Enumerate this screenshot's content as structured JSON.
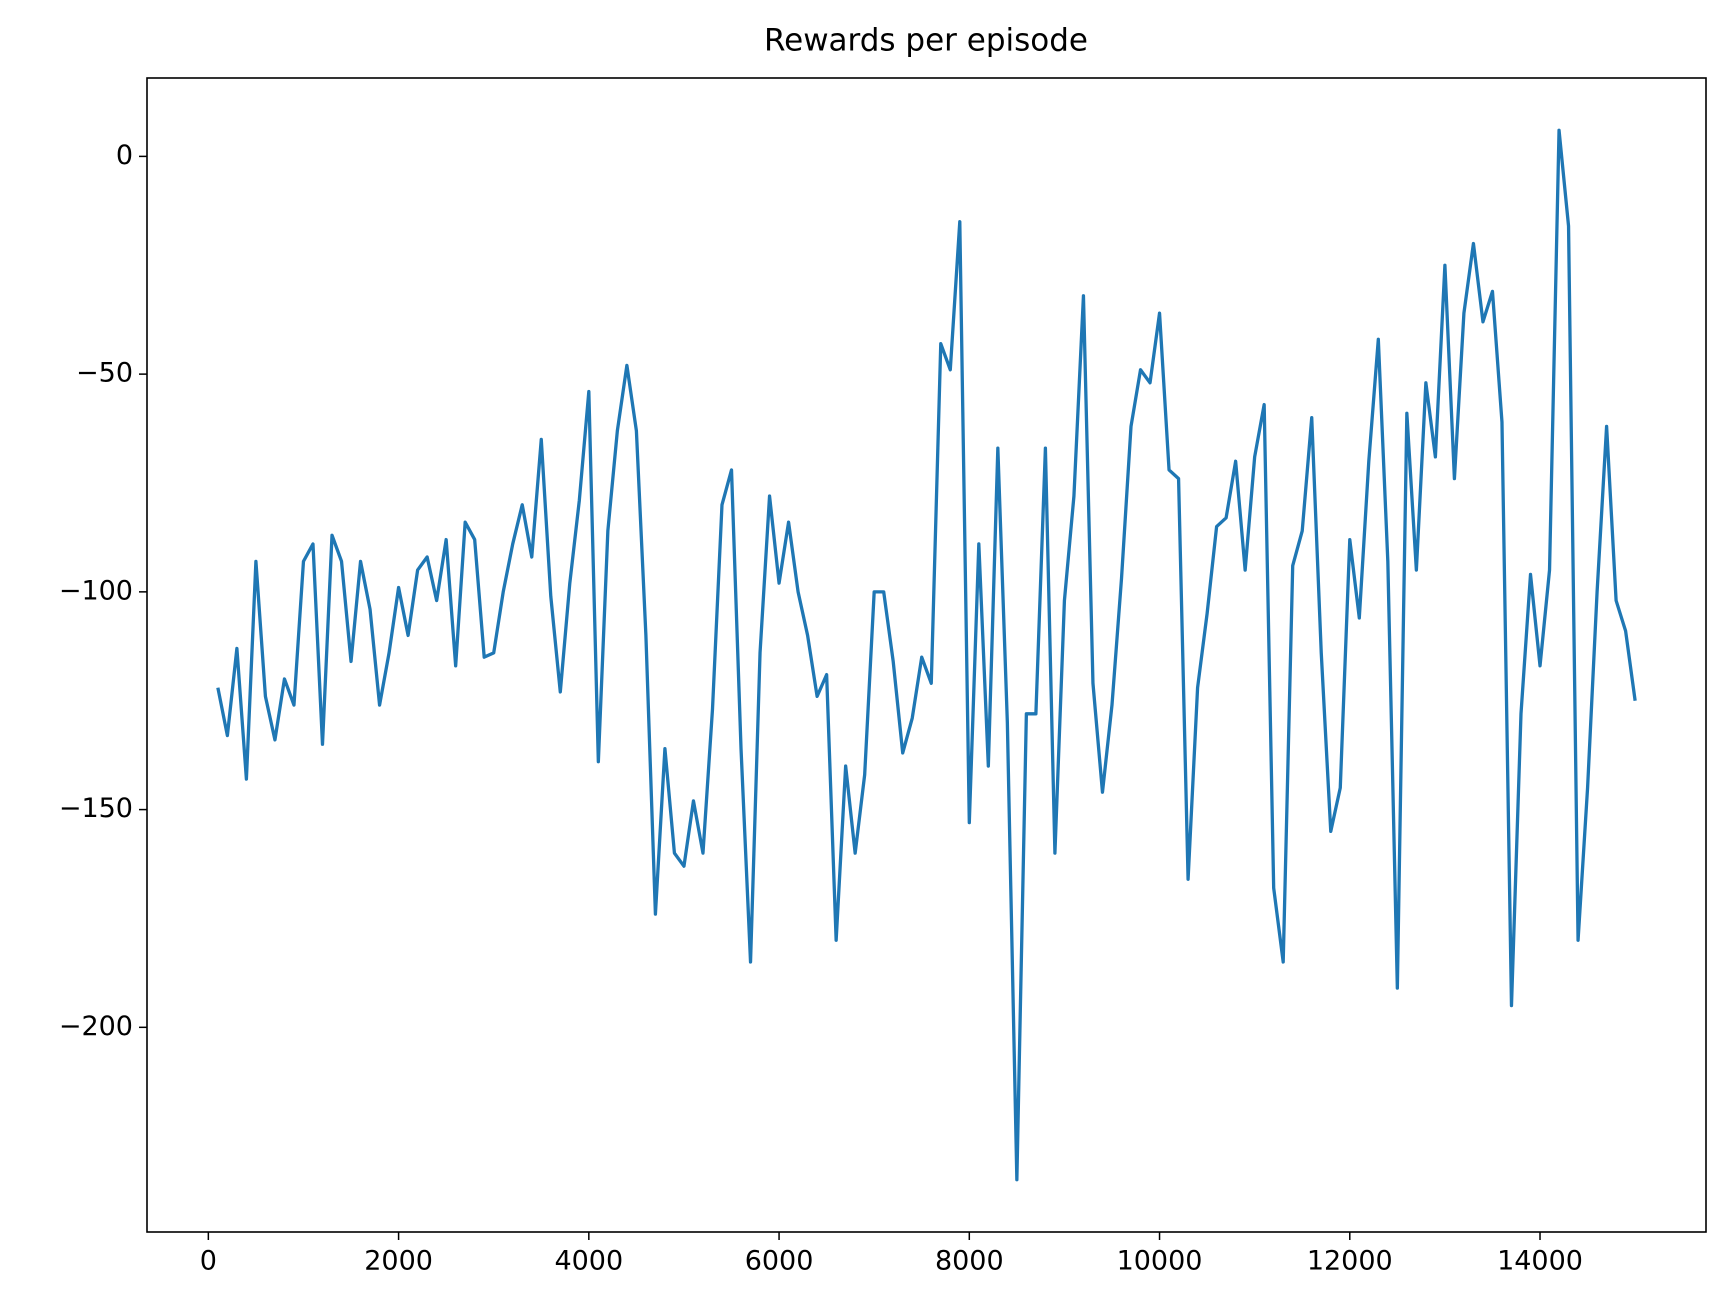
{
  "chart_data": {
    "type": "line",
    "title": "Rewards per episode",
    "x": [
      100,
      200,
      300,
      400,
      500,
      600,
      700,
      800,
      900,
      1000,
      1100,
      1200,
      1300,
      1400,
      1500,
      1600,
      1700,
      1800,
      1900,
      2000,
      2100,
      2200,
      2300,
      2400,
      2500,
      2600,
      2700,
      2800,
      2900,
      3000,
      3100,
      3200,
      3300,
      3400,
      3500,
      3600,
      3700,
      3800,
      3900,
      4000,
      4100,
      4200,
      4300,
      4400,
      4500,
      4600,
      4700,
      4800,
      4900,
      5000,
      5100,
      5200,
      5300,
      5400,
      5500,
      5600,
      5700,
      5800,
      5900,
      6000,
      6100,
      6200,
      6300,
      6400,
      6500,
      6600,
      6700,
      6800,
      6900,
      7000,
      7100,
      7200,
      7300,
      7400,
      7500,
      7600,
      7700,
      7800,
      7900,
      8000,
      8100,
      8200,
      8300,
      8400,
      8500,
      8600,
      8700,
      8800,
      8900,
      9000,
      9100,
      9200,
      9300,
      9400,
      9500,
      9600,
      9700,
      9800,
      9900,
      10000,
      10100,
      10200,
      10300,
      10400,
      10500,
      10600,
      10700,
      10800,
      10900,
      11000,
      11100,
      11200,
      11300,
      11400,
      11500,
      11600,
      11700,
      11800,
      11900,
      12000,
      12100,
      12200,
      12300,
      12400,
      12500,
      12600,
      12700,
      12800,
      12900,
      13000,
      13100,
      13200,
      13300,
      13400,
      13500,
      13600,
      13700,
      13800,
      13900,
      14000,
      14100,
      14200,
      14300,
      14400,
      14500,
      14600,
      14700,
      14800,
      14900,
      15000
    ],
    "series": [
      {
        "color": "#1f77b4",
        "values": [
          -122,
          -133,
          -113,
          -143,
          -93,
          -124,
          -134,
          -120,
          -126,
          -93,
          -89,
          -135,
          -87,
          -93,
          -116,
          -93,
          -104,
          -126,
          -114,
          -99,
          -110,
          -95,
          -92,
          -102,
          -88,
          -117,
          -84,
          -88,
          -115,
          -114,
          -100,
          -89,
          -80,
          -92,
          -65,
          -101,
          -123,
          -98,
          -79,
          -54,
          -139,
          -86,
          -63,
          -48,
          -63,
          -110,
          -174,
          -136,
          -160,
          -163,
          -148,
          -160,
          -127,
          -80,
          -72,
          -136,
          -185,
          -114,
          -78,
          -98,
          -84,
          -100,
          -110,
          -124,
          -119,
          -180,
          -140,
          -160,
          -142,
          -100,
          -100,
          -116,
          -137,
          -129,
          -115,
          -121,
          -43,
          -49,
          -15,
          -153,
          -89,
          -140,
          -67,
          -130,
          -235,
          -128,
          -128,
          -67,
          -160,
          -102,
          -78,
          -32,
          -121,
          -146,
          -126,
          -97,
          -62,
          -49,
          -52,
          -36,
          -72,
          -74,
          -166,
          -122,
          -105,
          -85,
          -83,
          -70,
          -95,
          -69,
          -57,
          -168,
          -185,
          -94,
          -86,
          -60,
          -114,
          -155,
          -145,
          -88,
          -106,
          -70,
          -42,
          -93,
          -191,
          -59,
          -95,
          -52,
          -69,
          -25,
          -74,
          -36,
          -20,
          -38,
          -31,
          -61,
          -195,
          -128,
          -96,
          -117,
          -95,
          6,
          -16,
          -180,
          -145,
          -100,
          -62,
          -102,
          -109,
          -125
        ]
      }
    ],
    "xlim": [
      -645,
      15745
    ],
    "xticks": [
      0,
      2000,
      4000,
      6000,
      8000,
      10000,
      12000,
      14000
    ],
    "ylim": [
      -247,
      18
    ],
    "yticks": [
      0,
      {
        "value": -50,
        "label": "−50"
      },
      {
        "value": -100,
        "label": "−100"
      },
      {
        "value": -150,
        "label": "−150"
      },
      {
        "value": -200,
        "label": "−200"
      }
    ]
  }
}
